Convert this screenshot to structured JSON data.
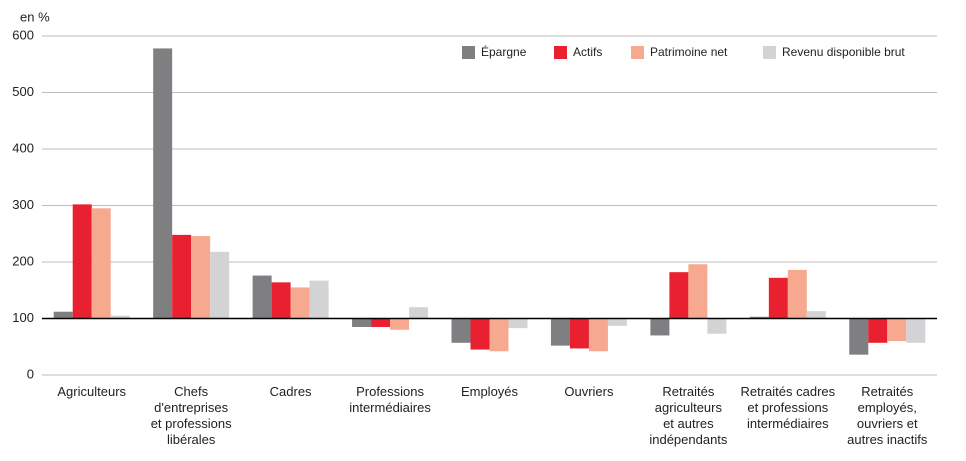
{
  "chart_data": {
    "type": "bar",
    "y_label": "en %",
    "categories": [
      "Agriculteurs",
      "Chefs\nd'entreprises\net professions\nlibérales",
      "Cadres",
      "Professions\nintermédiaires",
      "Employés",
      "Ouvriers",
      "Retraités\nagriculteurs\net autres\nindépendants",
      "Retraités cadres\net professions\nintermédiaires",
      "Retraités\nemployés,\nouvriers et\nautres inactifs"
    ],
    "series": [
      {
        "name": "Épargne",
        "color": "#7f7f81",
        "values": [
          112,
          578,
          176,
          85,
          57,
          52,
          70,
          103,
          36
        ]
      },
      {
        "name": "Actifs",
        "color": "#e8202f",
        "values": [
          302,
          248,
          164,
          85,
          45,
          47,
          182,
          172,
          57
        ]
      },
      {
        "name": "Patrimoine net",
        "color": "#f6a98f",
        "values": [
          295,
          246,
          155,
          80,
          42,
          42,
          196,
          186,
          60
        ]
      },
      {
        "name": "Revenu disponible brut",
        "color": "#d3d3d5",
        "values": [
          105,
          218,
          167,
          120,
          83,
          87,
          73,
          113,
          57
        ]
      }
    ],
    "baseline": 100,
    "ylim": [
      0,
      600
    ],
    "yticks": [
      0,
      100,
      200,
      300,
      400,
      500,
      600
    ],
    "grid": true,
    "legend": "top-right"
  }
}
